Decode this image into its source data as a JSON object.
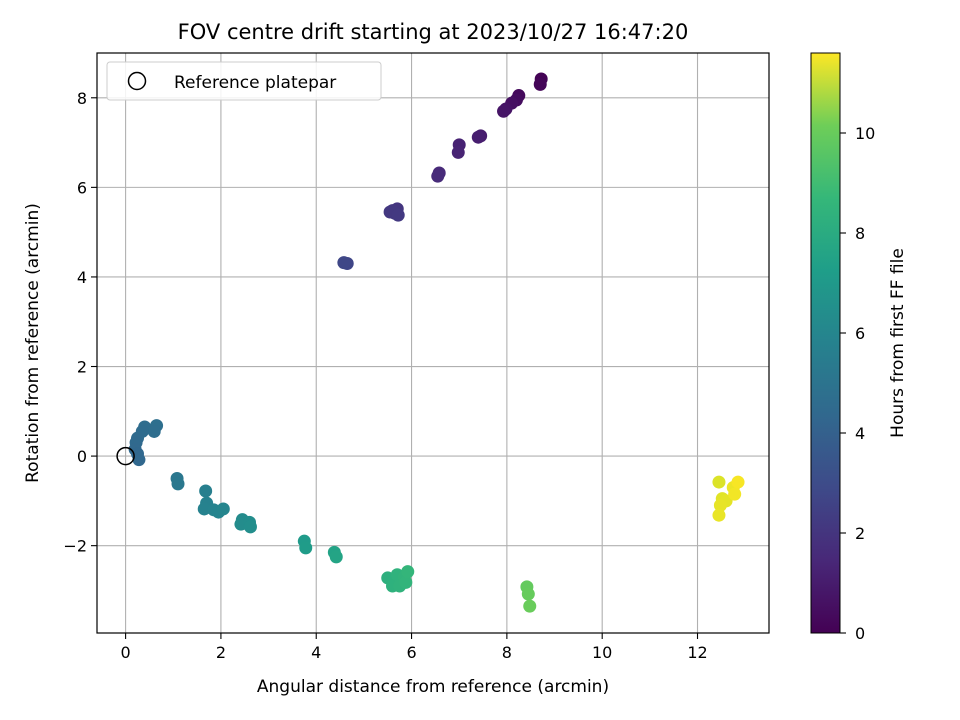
{
  "chart_data": {
    "type": "scatter",
    "title": "FOV centre drift starting at 2023/10/27 16:47:20",
    "xlabel": "Angular distance from reference (arcmin)",
    "ylabel": "Rotation from reference (arcmin)",
    "xlim": [
      -0.6,
      13.5
    ],
    "ylim": [
      -3.95,
      9.0
    ],
    "xticks": [
      0,
      2,
      4,
      6,
      8,
      10,
      12
    ],
    "xtick_labels": [
      "0",
      "2",
      "4",
      "6",
      "8",
      "10",
      "12"
    ],
    "yticks": [
      -2,
      0,
      2,
      4,
      6,
      8
    ],
    "ytick_labels": [
      "−2",
      "0",
      "2",
      "4",
      "6",
      "8"
    ],
    "grid": true,
    "legend": {
      "placement": "top-left",
      "entries": [
        "Reference platepar"
      ]
    },
    "reference_point": {
      "x": 0,
      "y": 0
    },
    "colorbar": {
      "label": "Hours from first FF file",
      "min": 0,
      "max": 11.6,
      "ticks": [
        0,
        2,
        4,
        6,
        8,
        10
      ],
      "tick_labels": [
        "0",
        "2",
        "4",
        "6",
        "8",
        "10"
      ],
      "colormap": "viridis"
    },
    "points": [
      {
        "x": 8.72,
        "y": 8.42,
        "c": 0.05
      },
      {
        "x": 8.7,
        "y": 8.3,
        "c": 0.15
      },
      {
        "x": 8.25,
        "y": 8.05,
        "c": 0.3
      },
      {
        "x": 8.2,
        "y": 7.95,
        "c": 0.4
      },
      {
        "x": 8.1,
        "y": 7.88,
        "c": 0.5
      },
      {
        "x": 7.98,
        "y": 7.75,
        "c": 0.6
      },
      {
        "x": 7.93,
        "y": 7.7,
        "c": 0.65
      },
      {
        "x": 7.45,
        "y": 7.15,
        "c": 0.9
      },
      {
        "x": 7.4,
        "y": 7.12,
        "c": 0.95
      },
      {
        "x": 7.0,
        "y": 6.95,
        "c": 1.1
      },
      {
        "x": 6.98,
        "y": 6.78,
        "c": 1.15
      },
      {
        "x": 6.58,
        "y": 6.32,
        "c": 1.35
      },
      {
        "x": 6.55,
        "y": 6.25,
        "c": 1.4
      },
      {
        "x": 5.7,
        "y": 5.52,
        "c": 1.8
      },
      {
        "x": 5.6,
        "y": 5.48,
        "c": 1.85
      },
      {
        "x": 5.65,
        "y": 5.42,
        "c": 1.9
      },
      {
        "x": 5.55,
        "y": 5.45,
        "c": 1.88
      },
      {
        "x": 5.72,
        "y": 5.38,
        "c": 1.95
      },
      {
        "x": 4.65,
        "y": 4.3,
        "c": 2.4
      },
      {
        "x": 4.58,
        "y": 4.32,
        "c": 2.45
      },
      {
        "x": 0.65,
        "y": 0.68,
        "c": 4.2
      },
      {
        "x": 0.4,
        "y": 0.65,
        "c": 4.1
      },
      {
        "x": 0.6,
        "y": 0.55,
        "c": 4.15
      },
      {
        "x": 0.35,
        "y": 0.55,
        "c": 4.05
      },
      {
        "x": 0.25,
        "y": 0.4,
        "c": 4.0
      },
      {
        "x": 0.22,
        "y": 0.3,
        "c": 3.95
      },
      {
        "x": 0.2,
        "y": 0.15,
        "c": 3.9
      },
      {
        "x": 0.25,
        "y": 0.05,
        "c": 3.85
      },
      {
        "x": 0.28,
        "y": -0.08,
        "c": 3.88
      },
      {
        "x": 1.08,
        "y": -0.5,
        "c": 4.6
      },
      {
        "x": 1.1,
        "y": -0.62,
        "c": 4.65
      },
      {
        "x": 1.68,
        "y": -0.78,
        "c": 5.0
      },
      {
        "x": 1.7,
        "y": -1.05,
        "c": 5.1
      },
      {
        "x": 1.65,
        "y": -1.18,
        "c": 5.15
      },
      {
        "x": 1.85,
        "y": -1.2,
        "c": 5.2
      },
      {
        "x": 1.95,
        "y": -1.25,
        "c": 5.25
      },
      {
        "x": 2.05,
        "y": -1.18,
        "c": 5.3
      },
      {
        "x": 2.45,
        "y": -1.42,
        "c": 5.55
      },
      {
        "x": 2.42,
        "y": -1.52,
        "c": 5.6
      },
      {
        "x": 2.6,
        "y": -1.48,
        "c": 5.65
      },
      {
        "x": 2.62,
        "y": -1.58,
        "c": 5.7
      },
      {
        "x": 3.75,
        "y": -1.9,
        "c": 6.3
      },
      {
        "x": 3.78,
        "y": -2.05,
        "c": 6.35
      },
      {
        "x": 4.38,
        "y": -2.15,
        "c": 6.7
      },
      {
        "x": 4.42,
        "y": -2.25,
        "c": 6.75
      },
      {
        "x": 5.5,
        "y": -2.72,
        "c": 7.3
      },
      {
        "x": 5.62,
        "y": -2.8,
        "c": 7.35
      },
      {
        "x": 5.6,
        "y": -2.9,
        "c": 7.4
      },
      {
        "x": 5.7,
        "y": -2.65,
        "c": 7.45
      },
      {
        "x": 5.75,
        "y": -2.9,
        "c": 7.5
      },
      {
        "x": 5.85,
        "y": -2.7,
        "c": 7.55
      },
      {
        "x": 5.88,
        "y": -2.82,
        "c": 7.6
      },
      {
        "x": 5.92,
        "y": -2.58,
        "c": 7.65
      },
      {
        "x": 8.42,
        "y": -2.92,
        "c": 8.8
      },
      {
        "x": 8.45,
        "y": -3.08,
        "c": 8.85
      },
      {
        "x": 8.48,
        "y": -3.35,
        "c": 8.9
      },
      {
        "x": 12.45,
        "y": -0.58,
        "c": 11.0
      },
      {
        "x": 12.52,
        "y": -0.95,
        "c": 11.1
      },
      {
        "x": 12.6,
        "y": -1.0,
        "c": 11.15
      },
      {
        "x": 12.48,
        "y": -1.1,
        "c": 11.2
      },
      {
        "x": 12.45,
        "y": -1.32,
        "c": 11.25
      },
      {
        "x": 12.75,
        "y": -0.7,
        "c": 11.3
      },
      {
        "x": 12.78,
        "y": -0.85,
        "c": 11.4
      },
      {
        "x": 12.85,
        "y": -0.58,
        "c": 11.5
      }
    ]
  }
}
